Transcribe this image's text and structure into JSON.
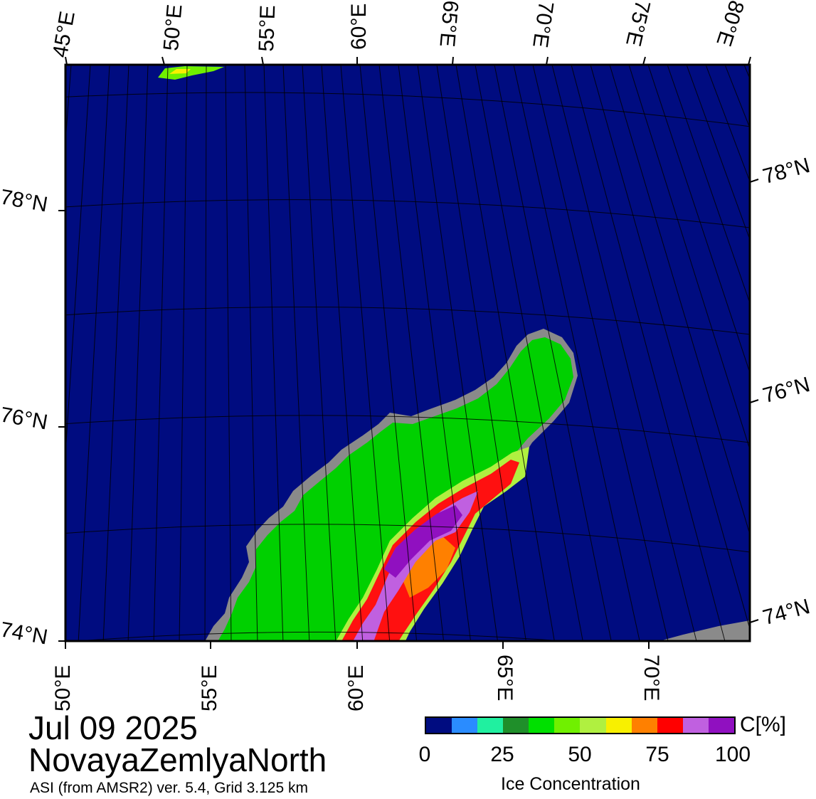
{
  "map": {
    "date": "Jul 09 2025",
    "region": "NovayaZemlyaNorth",
    "source": "ASI (from AMSR2) ver. 5.4,  Grid 3.125 km",
    "top_lon_labels": [
      "45°E",
      "50°E",
      "55°E",
      "60°E",
      "65°E",
      "70°E",
      "75°E",
      "80°E"
    ],
    "bottom_lon_labels": [
      "50°E",
      "55°E",
      "60°E",
      "65°E",
      "70°E"
    ],
    "left_lat_labels": [
      "78°N",
      "76°N",
      "74°N"
    ],
    "right_lat_labels": [
      "78°N",
      "76°N",
      "74°N"
    ],
    "colors": {
      "ocean": "#000c80",
      "land": "#00d000",
      "land_ice_gray": "#888888",
      "grid_line": "#000000"
    }
  },
  "legend": {
    "title": "Ice Concentration",
    "unit_label": "C[%]",
    "ticks": [
      "0",
      "25",
      "50",
      "75",
      "100"
    ],
    "color_steps": [
      "#000c80",
      "#2a8cff",
      "#20f0a0",
      "#1f8f2a",
      "#00e000",
      "#70f000",
      "#b0f040",
      "#f8f000",
      "#ff8000",
      "#ff0000",
      "#c060e0",
      "#9010c0"
    ]
  }
}
